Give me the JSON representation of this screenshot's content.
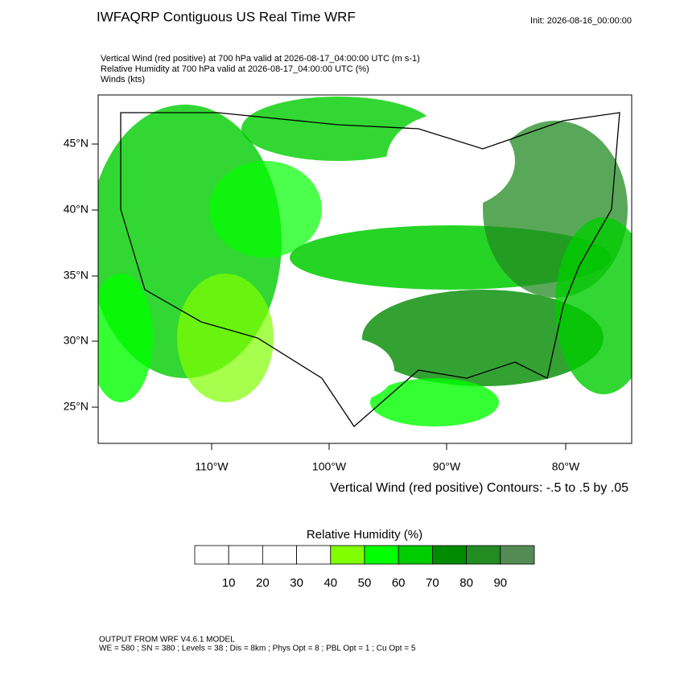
{
  "header": {
    "title": "IWFAQRP Contiguous US Real Time WRF",
    "init": "Init: 2026-08-16_00:00:00"
  },
  "subtitle_lines": [
    "Vertical Wind (red positive) at 700 hPa valid at 2026-08-17_04:00:00 UTC   (m s-1)",
    "Relative Humidity at 700 hPa valid at 2026-08-17_04:00:00 UTC   (%)",
    "Winds   (kts)"
  ],
  "map": {
    "lat_labels": [
      "45°N",
      "40°N",
      "35°N",
      "30°N",
      "25°N"
    ],
    "lon_labels": [
      "110°W",
      "100°W",
      "90°W",
      "80°W"
    ]
  },
  "contour_note": "Vertical Wind (red positive) Contours: -.5 to .5 by .05",
  "colorbar": {
    "title": "Relative Humidity  (%)",
    "colors": [
      "#ffffff",
      "#ffffff",
      "#ffffff",
      "#ffffff",
      "#80ff00",
      "#00ff00",
      "#00cd00",
      "#008b00",
      "#228b22",
      "#548b54"
    ],
    "labels": [
      10,
      20,
      30,
      40,
      50,
      60,
      70,
      80,
      90
    ]
  },
  "footer": [
    "OUTPUT FROM WRF V4.6.1 MODEL",
    "WE = 580 ; SN = 380 ; Levels = 38 ; Dis = 8km ; Phys Opt = 8 ; PBL Opt = 1 ; Cu Opt = 5"
  ]
}
